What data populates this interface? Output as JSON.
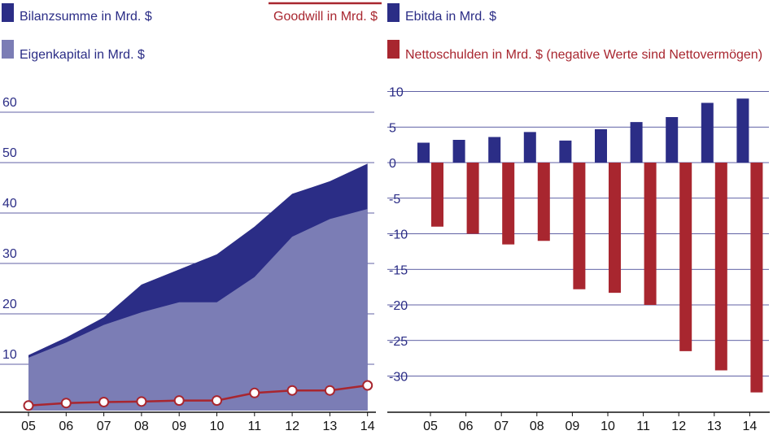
{
  "chart_data": [
    {
      "type": "area",
      "categories": [
        "05",
        "06",
        "07",
        "08",
        "09",
        "10",
        "11",
        "12",
        "13",
        "14"
      ],
      "series": [
        {
          "name": "Bilanzsumme in Mrd. $",
          "color": "#2b2d86",
          "values": [
            11,
            14.5,
            18.5,
            25,
            28,
            31,
            36.5,
            43,
            45.5,
            49
          ]
        },
        {
          "name": "Eigenkapital in Mrd. $",
          "color": "#7b7db5",
          "values": [
            10.5,
            13.5,
            17,
            19.5,
            21.5,
            21.5,
            26.5,
            34.5,
            38,
            40
          ]
        },
        {
          "name": "Goodwill in Mrd. $",
          "color": "#a8262f",
          "type": "line",
          "values": [
            1,
            1.5,
            1.7,
            1.8,
            2,
            2,
            3.5,
            4,
            4,
            5
          ]
        }
      ],
      "yticks": [
        "10",
        "20",
        "30",
        "40",
        "50",
        "60"
      ],
      "ylim": [
        0,
        60
      ]
    },
    {
      "type": "bar",
      "categories": [
        "05",
        "06",
        "07",
        "08",
        "09",
        "10",
        "11",
        "12",
        "13",
        "14"
      ],
      "series": [
        {
          "name": "Ebitda in Mrd. $",
          "color": "#2b2d86",
          "values": [
            2.8,
            3.2,
            3.6,
            4.3,
            3.1,
            4.7,
            5.7,
            6.4,
            8.4,
            9
          ]
        },
        {
          "name": "Nettoschulden in Mrd. $ (negative Werte sind Nettovermögen)",
          "color": "#a8262f",
          "values": [
            -9,
            -10,
            -11.5,
            -11,
            -17.8,
            -18.3,
            -20,
            -26.5,
            -29.2,
            -32.3
          ]
        }
      ],
      "yticks": [
        "10",
        "5",
        "0",
        "-5",
        "-10",
        "-15",
        "-20",
        "-25",
        "-30"
      ],
      "ylim": [
        -35,
        10
      ]
    }
  ]
}
